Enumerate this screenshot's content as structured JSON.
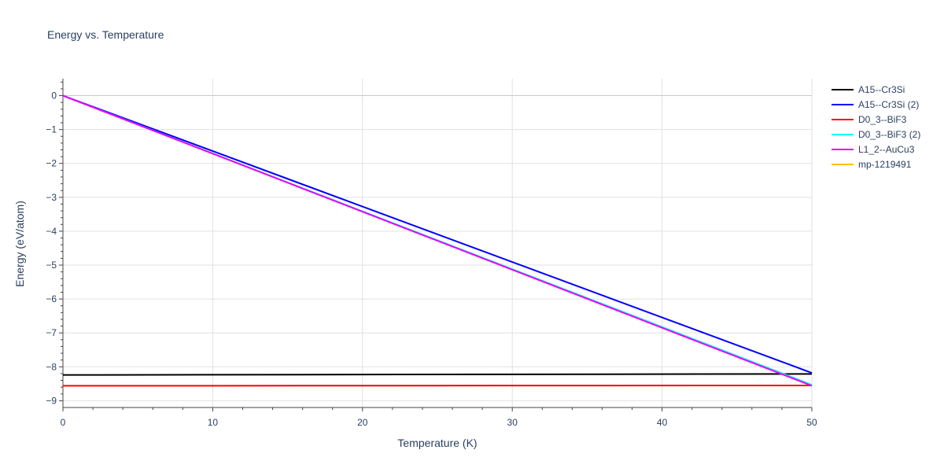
{
  "chart_data": {
    "type": "line",
    "title": "Energy vs. Temperature",
    "xlabel": "Temperature (K)",
    "ylabel": "Energy (eV/atom)",
    "xlim": [
      0,
      50
    ],
    "ylim": [
      -9.2,
      0.5
    ],
    "x_ticks": [
      0,
      10,
      20,
      30,
      40,
      50
    ],
    "y_ticks": [
      0,
      -1,
      -2,
      -3,
      -4,
      -5,
      -6,
      -7,
      -8,
      -9
    ],
    "y_tick_labels": [
      "0",
      "−1",
      "−2",
      "−3",
      "−4",
      "−5",
      "−6",
      "−7",
      "−8",
      "−9"
    ],
    "grid": true,
    "legend_position": "top-right",
    "series": [
      {
        "name": "A15--Cr3Si",
        "color": "#000000",
        "x": [
          0,
          50
        ],
        "y": [
          -8.24,
          -8.21
        ]
      },
      {
        "name": "A15--Cr3Si (2)",
        "color": "#0000ff",
        "x": [
          0,
          50
        ],
        "y": [
          0,
          -8.18
        ]
      },
      {
        "name": "D0_3--BiF3",
        "color": "#ff0000",
        "x": [
          0,
          50
        ],
        "y": [
          -8.56,
          -8.55
        ]
      },
      {
        "name": "D0_3--BiF3 (2)",
        "color": "#00ffff",
        "x": [
          0,
          50
        ],
        "y": [
          0,
          -8.53
        ]
      },
      {
        "name": "L1_2--AuCu3",
        "color": "#ee00ee",
        "x": [
          0,
          50
        ],
        "y": [
          0,
          -8.56
        ]
      },
      {
        "name": "mp-1219491",
        "color": "#ffbf00",
        "x": [],
        "y": []
      }
    ]
  }
}
